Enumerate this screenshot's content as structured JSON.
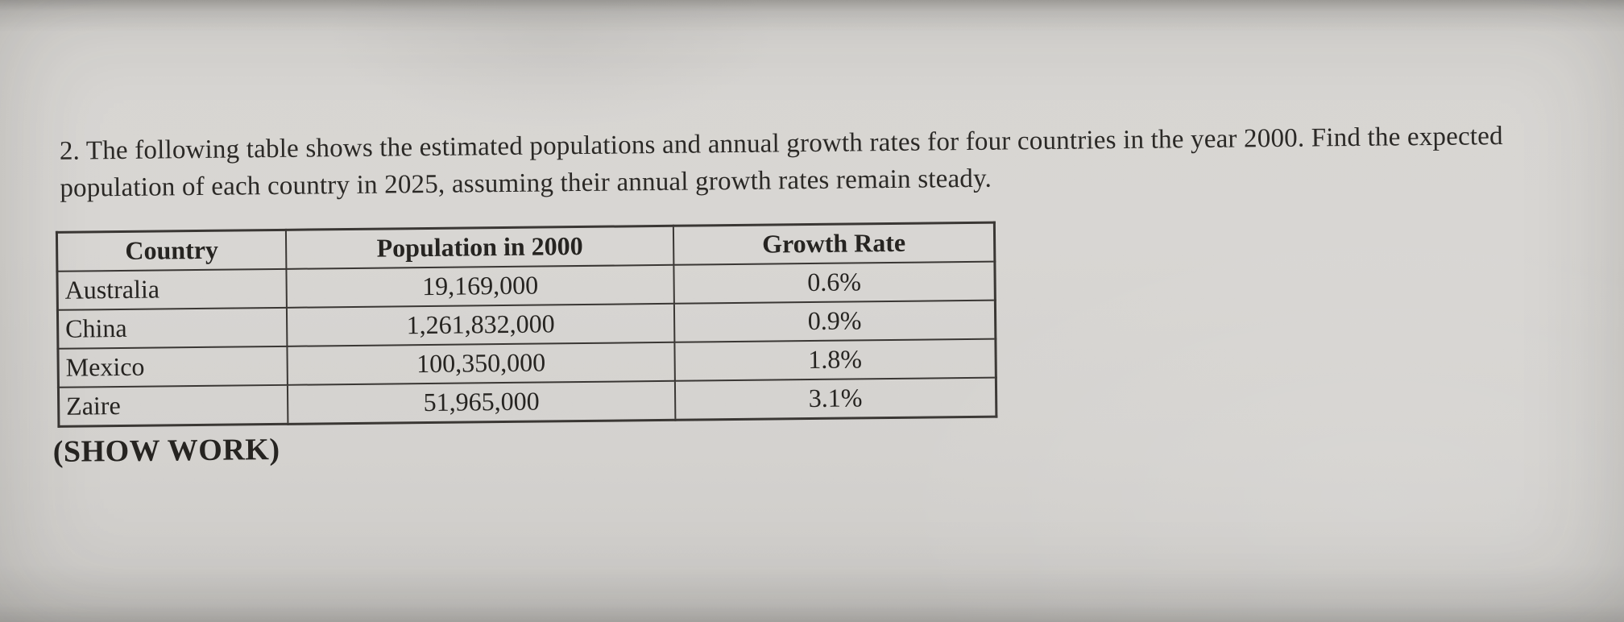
{
  "colors": {
    "paper": "#d6d4d1",
    "ink": "#2b2926",
    "table_border": "#3a3734"
  },
  "document": {
    "question": "2. The following table shows the estimated populations and annual growth rates for four countries in the year 2000. Find the expected population of each country in 2025, assuming their annual growth rates remain steady.",
    "table": {
      "headers": [
        "Country",
        "Population in 2000",
        "Growth Rate"
      ],
      "rows": [
        {
          "country": "Australia",
          "population": "19,169,000",
          "growth_rate": "0.6%"
        },
        {
          "country": "China",
          "population": "1,261,832,000",
          "growth_rate": "0.9%"
        },
        {
          "country": "Mexico",
          "population": "100,350,000",
          "growth_rate": "1.8%"
        },
        {
          "country": "Zaire",
          "population": "51,965,000",
          "growth_rate": "3.1%"
        }
      ]
    },
    "show_work": "(SHOW WORK)"
  }
}
